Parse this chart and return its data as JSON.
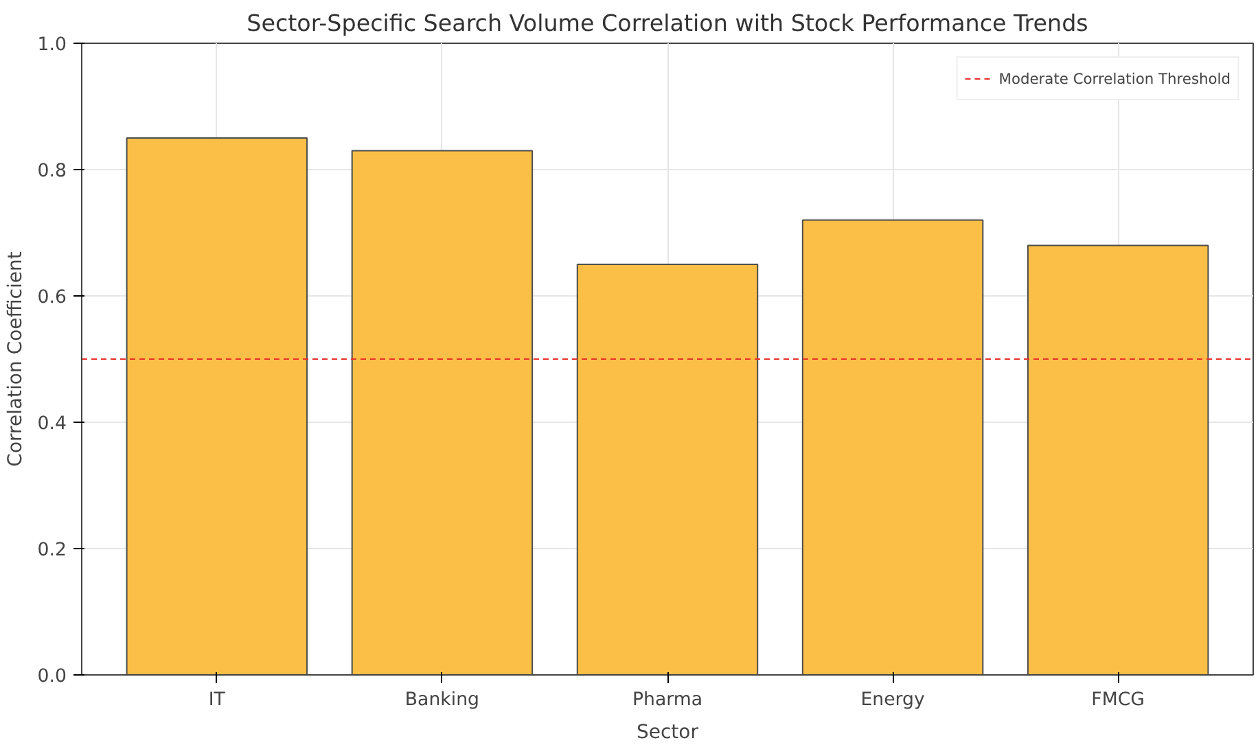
{
  "chart_data": {
    "type": "bar",
    "title": "Sector-Specific Search Volume Correlation with Stock Performance Trends",
    "xlabel": "Sector",
    "ylabel": "Correlation Coefficient",
    "categories": [
      "IT",
      "Banking",
      "Pharma",
      "Energy",
      "FMCG"
    ],
    "values": [
      0.85,
      0.83,
      0.65,
      0.72,
      0.68
    ],
    "color": "#fbbf47",
    "ylim": [
      0,
      1
    ],
    "yticks": [
      {
        "value": 0,
        "label": "0.0"
      },
      {
        "value": 0.2,
        "label": "0.2"
      },
      {
        "value": 0.4,
        "label": "0.4"
      },
      {
        "value": 0.6,
        "label": "0.6"
      },
      {
        "value": 0.8,
        "label": "0.8"
      },
      {
        "value": 1,
        "label": "1.0"
      }
    ],
    "ref_lines": [
      {
        "axis": "y",
        "value": 0.5,
        "label": "Moderate Correlation Threshold",
        "color": "#e8302a",
        "line_style": "dashed"
      }
    ],
    "grid": true,
    "legend": "top right"
  }
}
